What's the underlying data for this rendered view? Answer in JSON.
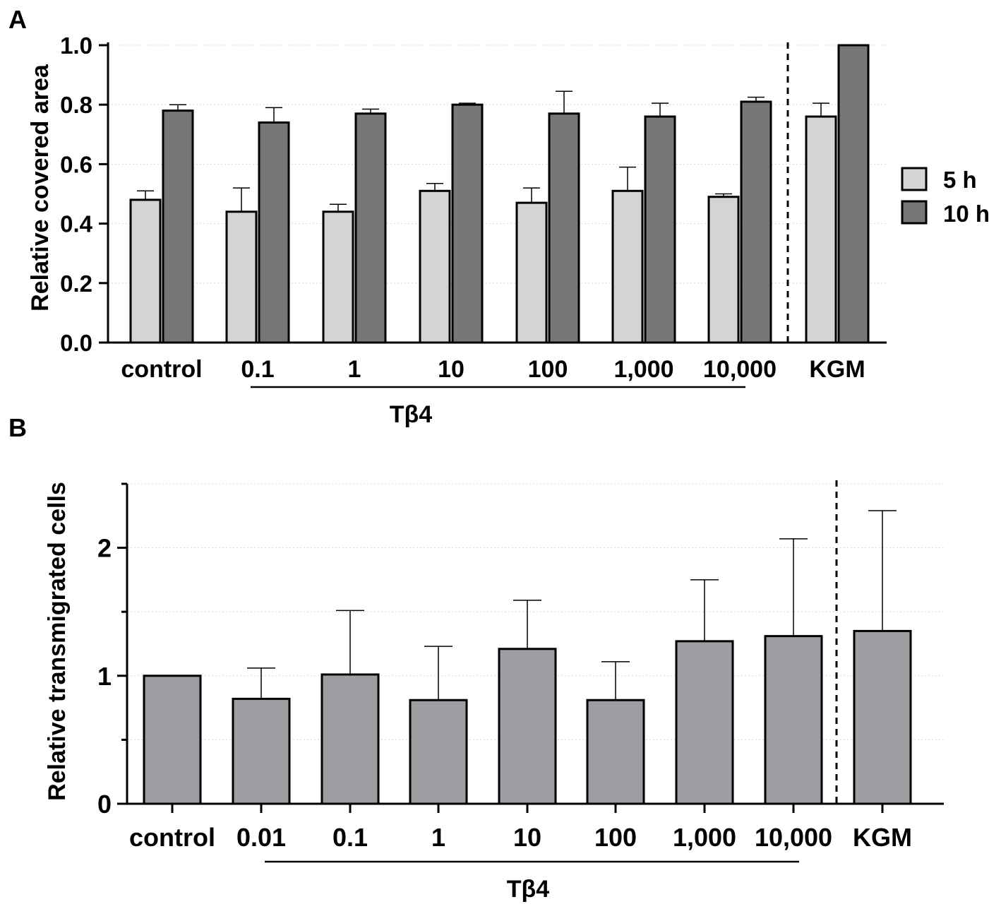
{
  "chart_data": [
    {
      "panel": "A",
      "type": "bar",
      "ylabel": "Relative covered area",
      "xlabel": "",
      "ylim": [
        0,
        1.0
      ],
      "yticks": [
        "0.0",
        "0.2",
        "0.4",
        "0.6",
        "0.8",
        "1.0"
      ],
      "ytick_values": [
        0,
        0.2,
        0.4,
        0.6,
        0.8,
        1.0
      ],
      "grid": true,
      "legend_position": "right",
      "categories": [
        "control",
        "0.1",
        "1",
        "10",
        "100",
        "1,000",
        "10,000",
        "KGM"
      ],
      "bracket_label": "Tβ4",
      "series": [
        {
          "name": "5 h",
          "color": "#d4d4d4",
          "values": [
            0.48,
            0.44,
            0.44,
            0.51,
            0.47,
            0.51,
            0.49,
            0.76
          ],
          "errors": [
            0.03,
            0.08,
            0.025,
            0.025,
            0.05,
            0.08,
            0.01,
            0.045
          ]
        },
        {
          "name": "10 h",
          "color": "#777777",
          "values": [
            0.78,
            0.74,
            0.77,
            0.8,
            0.77,
            0.76,
            0.81,
            1.0
          ],
          "errors": [
            0.02,
            0.05,
            0.015,
            0.005,
            0.075,
            0.045,
            0.015,
            0
          ]
        }
      ]
    },
    {
      "panel": "B",
      "type": "bar",
      "ylabel": "Relative transmigrated cells",
      "xlabel": "",
      "ylim": [
        0,
        2.5
      ],
      "yticks": [
        "0",
        "1",
        "2"
      ],
      "ytick_values": [
        0,
        1,
        2
      ],
      "minor_ticks": [
        0.5,
        1.5,
        2.5
      ],
      "grid": true,
      "categories": [
        "control",
        "0.01",
        "0.1",
        "1",
        "10",
        "100",
        "1,000",
        "10,000",
        "KGM"
      ],
      "bracket_label": "Tβ4",
      "series": [
        {
          "name": "Relative transmigrated cells",
          "color": "#9e9da2",
          "values": [
            1.0,
            0.82,
            1.01,
            0.81,
            1.21,
            0.81,
            1.27,
            1.31,
            1.35
          ],
          "errors": [
            0,
            0.24,
            0.5,
            0.42,
            0.38,
            0.3,
            0.48,
            0.76,
            0.94
          ]
        }
      ]
    }
  ],
  "panel_labels": {
    "a": "A",
    "b": "B"
  }
}
